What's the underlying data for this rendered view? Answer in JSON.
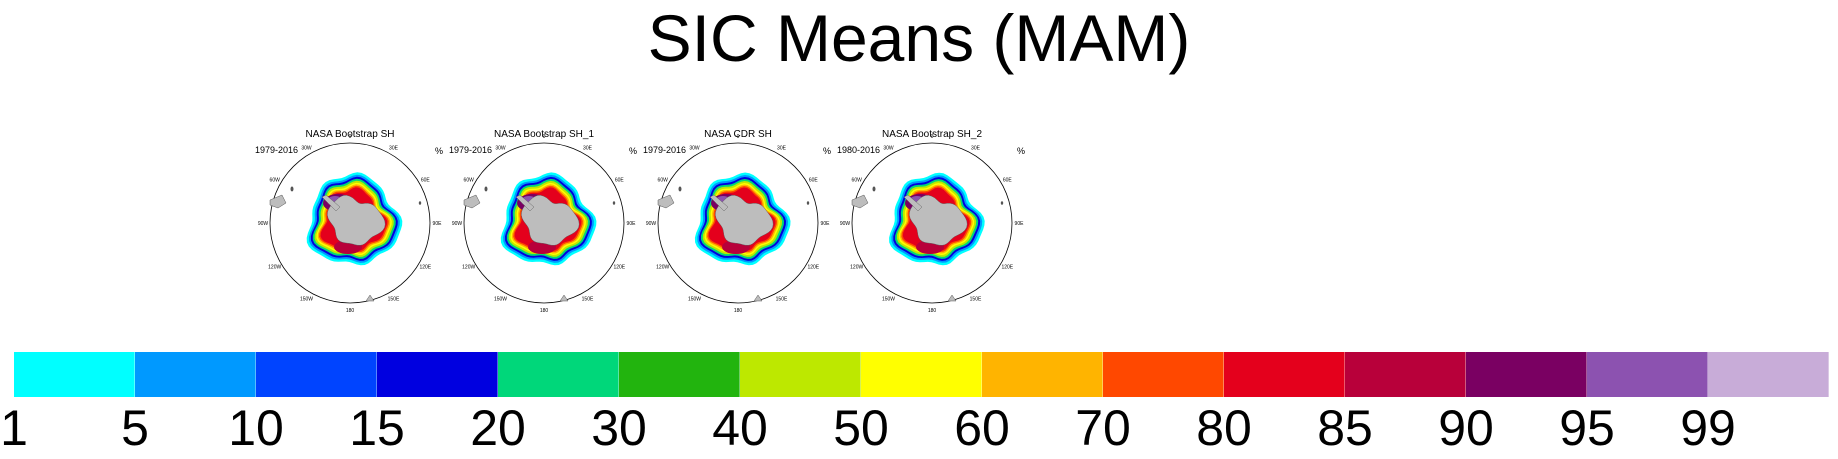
{
  "title": "SIC Means (MAM)",
  "chart_data": {
    "type": "heatmap",
    "title": "SIC Means (MAM)",
    "variable_unit": "%",
    "panels": [
      {
        "title": "NASA Bootstrap SH",
        "period": "1979-2016",
        "unit": "%"
      },
      {
        "title": "NASA Bootstrap SH_1",
        "period": "1979-2016",
        "unit": "%"
      },
      {
        "title": "NASA CDR SH",
        "period": "1979-2016",
        "unit": "%"
      },
      {
        "title": "NASA Bootstrap SH_2",
        "period": "1980-2016",
        "unit": "%"
      }
    ],
    "longitude_labels": [
      "0",
      "30E",
      "60E",
      "90E",
      "120E",
      "150E",
      "180",
      "150W",
      "120W",
      "90W",
      "60W",
      "30W"
    ],
    "land_color": "#bdbdbd",
    "colorbar": {
      "levels": [
        "1",
        "5",
        "10",
        "15",
        "20",
        "30",
        "40",
        "50",
        "60",
        "70",
        "80",
        "85",
        "90",
        "95",
        "99"
      ],
      "colors": [
        "#00ffff",
        "#0099ff",
        "#0044ff",
        "#0000e0",
        "#00d77a",
        "#22b40e",
        "#bde800",
        "#ffff00",
        "#ffb400",
        "#ff4800",
        "#e4001c",
        "#b8003a",
        "#7a0062",
        "#8c52b0",
        "#c8acd8"
      ]
    }
  }
}
